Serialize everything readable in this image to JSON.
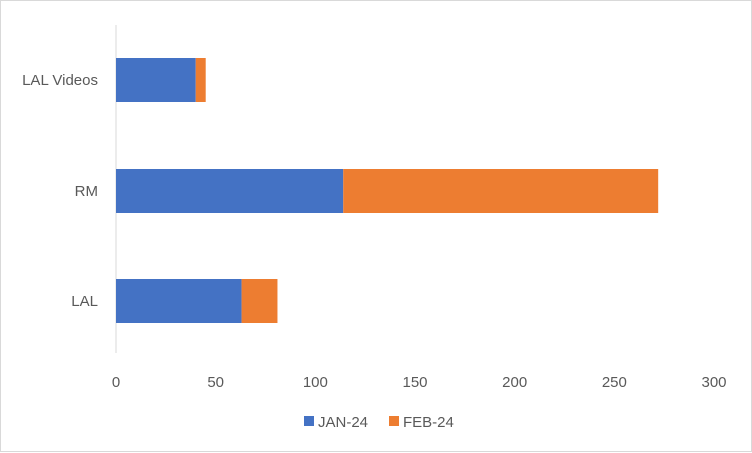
{
  "chart_data": {
    "type": "bar",
    "orientation": "horizontal",
    "stacked": true,
    "categories": [
      "LAL",
      "RM",
      "LAL Videos"
    ],
    "series": [
      {
        "name": "JAN-24",
        "values": [
          63,
          114,
          40
        ],
        "color": "#4472C4"
      },
      {
        "name": "FEB-24",
        "values": [
          18,
          158,
          5
        ],
        "color": "#ED7D31"
      }
    ],
    "xlim": [
      0,
      300
    ],
    "xticks": [
      "0",
      "50",
      "100",
      "150",
      "200",
      "250",
      "300"
    ],
    "grid": false,
    "legend_position": "bottom"
  }
}
